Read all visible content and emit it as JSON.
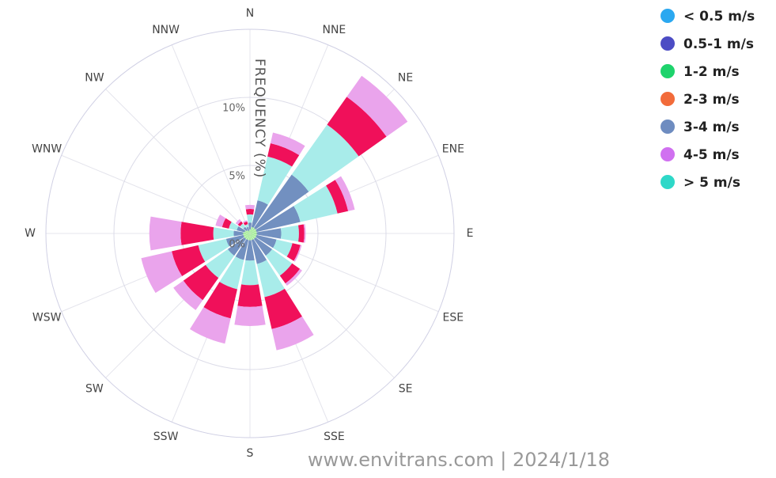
{
  "chart_data": {
    "type": "windrose",
    "axis_title": "FREQUENCY (%)",
    "footer": "www.envitrans.com | 2024/1/18",
    "categories": [
      "N",
      "NNE",
      "NE",
      "ENE",
      "E",
      "ESE",
      "SE",
      "SSE",
      "S",
      "SSW",
      "SW",
      "WSW",
      "W",
      "WNW",
      "NW",
      "NNW"
    ],
    "ylim": [
      0,
      15
    ],
    "yticks": [
      {
        "value": 0,
        "label": "0%"
      },
      {
        "value": 5,
        "label": "5%"
      },
      {
        "value": 10,
        "label": "10%"
      }
    ],
    "series": [
      {
        "name": "< 0.5 m/s",
        "color": "#2ba8f0",
        "bar_color": "#2ba8f0",
        "values": [
          0,
          0,
          0,
          0,
          0,
          0,
          0,
          0,
          0,
          0,
          0,
          0,
          0,
          0,
          0,
          0
        ]
      },
      {
        "name": "0.5-1 m/s",
        "color": "#4c4cc4",
        "bar_color": "#4c4cc4",
        "values": [
          0,
          0,
          0,
          0,
          0,
          0,
          0,
          0,
          0,
          0,
          0,
          0,
          0,
          0,
          0,
          0
        ]
      },
      {
        "name": "1-2 m/s",
        "color": "#1ed36c",
        "bar_color": "#a8ec9c",
        "values": [
          0.3,
          0.5,
          0.5,
          0.5,
          0.5,
          0.5,
          0.5,
          0.5,
          0.5,
          0.5,
          0.5,
          0.5,
          0.5,
          0.4,
          0.3,
          0.2
        ]
      },
      {
        "name": "2-3 m/s",
        "color": "#f26b3a",
        "bar_color": "#7290c0",
        "values": [
          0.5,
          2.0,
          4.8,
          3.3,
          1.8,
          1.5,
          1.5,
          1.8,
          1.5,
          1.5,
          1.5,
          1.3,
          0.7,
          0.6,
          0.3,
          0.3
        ]
      },
      {
        "name": "3-4 m/s",
        "color": "#6e8cc0",
        "bar_color": "#a8ecea",
        "values": [
          0.6,
          3.3,
          4.5,
          2.8,
          1.3,
          1.2,
          1.8,
          2.5,
          1.8,
          2.2,
          2.0,
          2.1,
          1.5,
          0.6,
          0.3,
          0.2
        ]
      },
      {
        "name": "4-5 m/s",
        "color": "#d070f0",
        "bar_color": "#f0105a",
        "values": [
          0.4,
          1.0,
          2.5,
          0.8,
          0.4,
          0.6,
          0.7,
          2.4,
          1.6,
          2.2,
          2.0,
          2.0,
          2.4,
          0.5,
          0.2,
          0.2
        ]
      },
      {
        "name": "> 5 m/s",
        "color": "#2ed8c8",
        "bar_color": "#eaa4ec",
        "values": [
          0.3,
          0.8,
          1.9,
          0.5,
          0.1,
          0.1,
          0.2,
          1.6,
          1.4,
          1.9,
          0.9,
          2.3,
          2.3,
          0.5,
          0.2,
          0.1
        ]
      }
    ]
  }
}
